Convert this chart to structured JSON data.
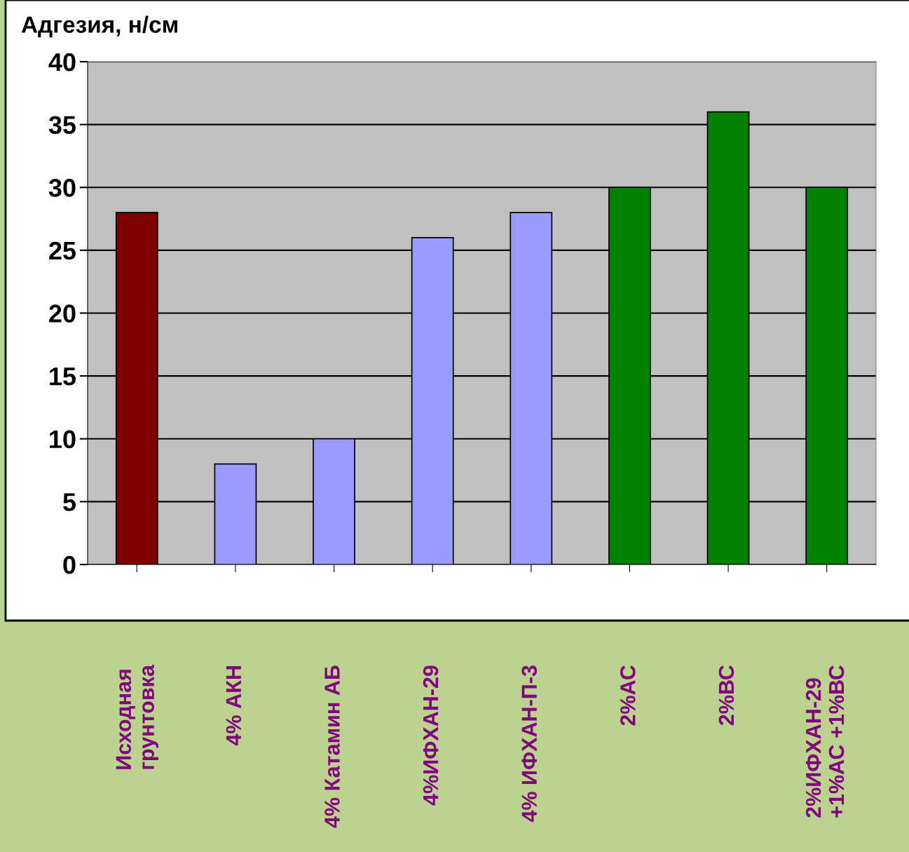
{
  "chart_data": {
    "type": "bar",
    "ylabel": "Адгезия, н/см",
    "categories": [
      "Исходная\nгрунтовка",
      "4% АКН",
      "4% Катамин АБ",
      "4%ИФХАН-29",
      "4% ИФХАН-П-3",
      "2%АС",
      "2%ВС",
      "2%ИФХАН-29\n+1%АС +1%ВС"
    ],
    "values": [
      28,
      8,
      10,
      26,
      28,
      30,
      36,
      30
    ],
    "colors": [
      "#800000",
      "#9999ff",
      "#9999ff",
      "#9999ff",
      "#9999ff",
      "#008000",
      "#008000",
      "#008000"
    ],
    "ylim": [
      0,
      40
    ],
    "yticks": [
      0,
      5,
      10,
      15,
      20,
      25,
      30,
      35,
      40
    ],
    "grid": "y"
  }
}
